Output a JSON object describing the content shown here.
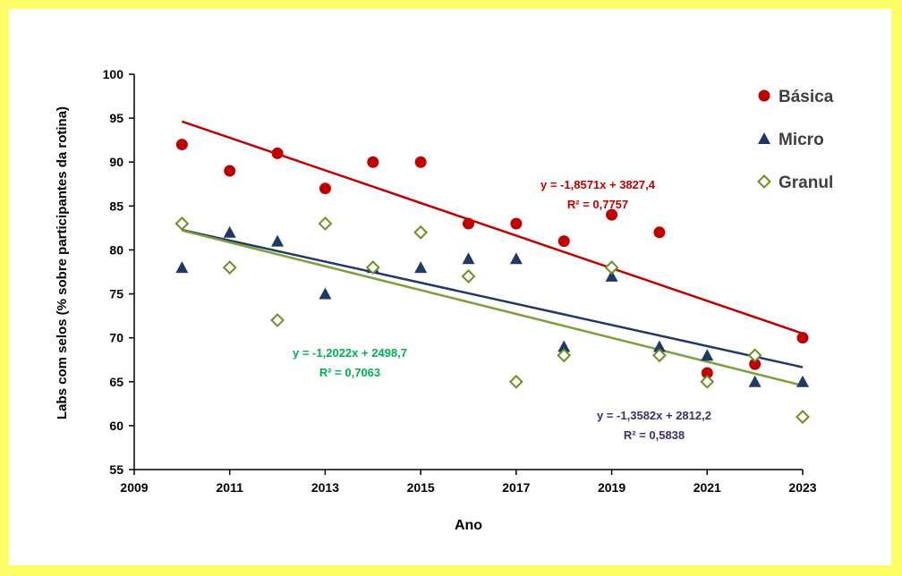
{
  "chart_data": {
    "type": "scatter",
    "xlabel": "Ano",
    "ylabel": "Labs com selos (% sobre participantes da rotina)",
    "xlim": [
      2009,
      2023
    ],
    "ylim": [
      55,
      100
    ],
    "xticks": [
      2009,
      2011,
      2013,
      2015,
      2017,
      2019,
      2021,
      2023
    ],
    "yticks": [
      55,
      60,
      65,
      70,
      75,
      80,
      85,
      90,
      95,
      100
    ],
    "grid": false,
    "legend": "top-right",
    "series": [
      {
        "name": "Básica",
        "marker": "circle",
        "color": "#c00000",
        "x": [
          2010,
          2011,
          2012,
          2013,
          2014,
          2015,
          2016,
          2017,
          2018,
          2019,
          2020,
          2021,
          2022,
          2023
        ],
        "y": [
          92,
          89,
          91,
          87,
          90,
          90,
          83,
          83,
          81,
          84,
          82,
          66,
          67,
          70
        ],
        "trend": {
          "slope": -1.8571,
          "intercept": 3827.4,
          "color": "#c00000"
        }
      },
      {
        "name": "Micro",
        "marker": "triangle",
        "color": "#1f3864",
        "x": [
          2010,
          2011,
          2012,
          2013,
          2014,
          2015,
          2016,
          2017,
          2018,
          2019,
          2020,
          2021,
          2022,
          2023
        ],
        "y": [
          78,
          82,
          81,
          75,
          78,
          78,
          79,
          79,
          69,
          77,
          69,
          68,
          65,
          65
        ],
        "trend": {
          "slope": -1.2022,
          "intercept": 2498.7,
          "color": "#203864"
        }
      },
      {
        "name": "Granul",
        "marker": "diamond-open",
        "color": "#6b8e23",
        "x": [
          2010,
          2011,
          2012,
          2013,
          2014,
          2015,
          2016,
          2017,
          2018,
          2019,
          2020,
          2021,
          2022,
          2023
        ],
        "y": [
          83,
          78,
          72,
          83,
          78,
          82,
          77,
          65,
          68,
          78,
          68,
          65,
          68,
          61
        ],
        "trend": {
          "slope": -1.3582,
          "intercept": 2812.2,
          "color": "#7f9f3a"
        }
      }
    ],
    "annotations": [
      {
        "line1": "y = -1,8571x + 3827,4",
        "line2": "R² = 0,7757",
        "color": "#c00000"
      },
      {
        "line1": "y = -1,2022x + 2498,7",
        "line2": "R² = 0,7063",
        "color": "#00b050"
      },
      {
        "line1": "y = -1,3582x + 2812,2",
        "line2": "R² = 0,5838",
        "color": "#403060"
      }
    ]
  }
}
